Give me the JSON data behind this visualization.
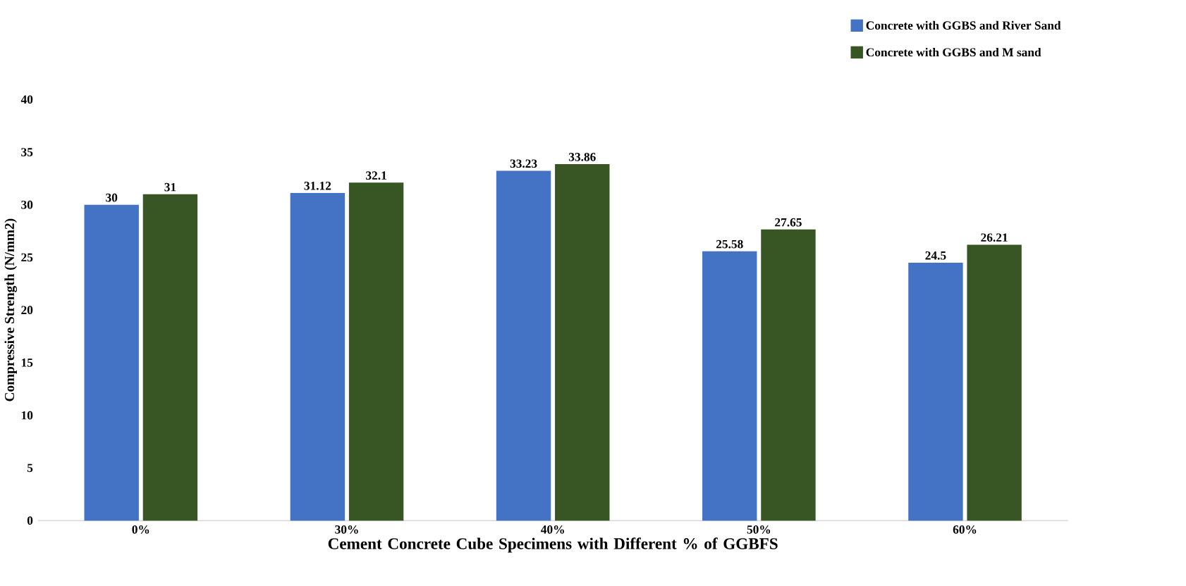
{
  "chart_data": {
    "type": "bar",
    "categories": [
      "0%",
      "30%",
      "40%",
      "50%",
      "60%"
    ],
    "series": [
      {
        "name": "Concrete with GGBS and River Sand",
        "color": "#4472c4",
        "values": [
          30,
          31.12,
          33.23,
          25.58,
          24.5
        ]
      },
      {
        "name": "Concrete with GGBS and M sand",
        "color": "#375623",
        "values": [
          31,
          32.1,
          33.86,
          27.65,
          26.21
        ]
      }
    ],
    "xlabel": "Cement Concrete Cube Specimens with Different % of GGBFS",
    "ylabel": "Compressive Strength (N/mm2)",
    "ylim": [
      0,
      40
    ],
    "yticks": [
      0,
      5,
      10,
      15,
      20,
      25,
      30,
      35,
      40
    ],
    "data_labels": true,
    "legend": "top right",
    "grid": false
  }
}
